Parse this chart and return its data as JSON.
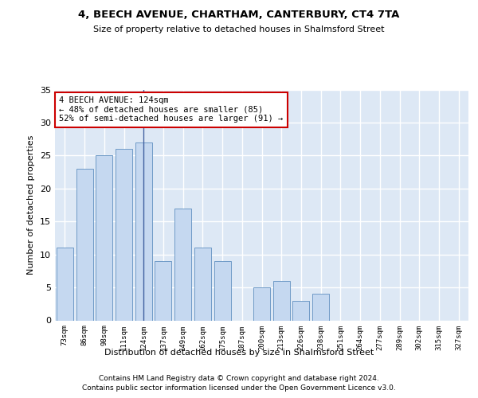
{
  "title1": "4, BEECH AVENUE, CHARTHAM, CANTERBURY, CT4 7TA",
  "title2": "Size of property relative to detached houses in Shalmsford Street",
  "xlabel": "Distribution of detached houses by size in Shalmsford Street",
  "ylabel": "Number of detached properties",
  "categories": [
    "73sqm",
    "86sqm",
    "98sqm",
    "111sqm",
    "124sqm",
    "137sqm",
    "149sqm",
    "162sqm",
    "175sqm",
    "187sqm",
    "200sqm",
    "213sqm",
    "226sqm",
    "238sqm",
    "251sqm",
    "264sqm",
    "277sqm",
    "289sqm",
    "302sqm",
    "315sqm",
    "327sqm"
  ],
  "values": [
    11,
    23,
    25,
    26,
    27,
    9,
    17,
    11,
    9,
    0,
    5,
    6,
    3,
    4,
    0,
    0,
    0,
    0,
    0,
    0,
    0
  ],
  "bar_color": "#c5d8f0",
  "bar_edge_color": "#6090c0",
  "highlight_bar_index": 4,
  "highlight_line_color": "#4060a0",
  "ylim": [
    0,
    35
  ],
  "yticks": [
    0,
    5,
    10,
    15,
    20,
    25,
    30,
    35
  ],
  "annotation_text": "4 BEECH AVENUE: 124sqm\n← 48% of detached houses are smaller (85)\n52% of semi-detached houses are larger (91) →",
  "annotation_box_color": "#ffffff",
  "annotation_box_edge_color": "#cc0000",
  "footer1": "Contains HM Land Registry data © Crown copyright and database right 2024.",
  "footer2": "Contains public sector information licensed under the Open Government Licence v3.0.",
  "background_color": "#dde8f5",
  "grid_color": "#ffffff",
  "fig_background": "#ffffff"
}
